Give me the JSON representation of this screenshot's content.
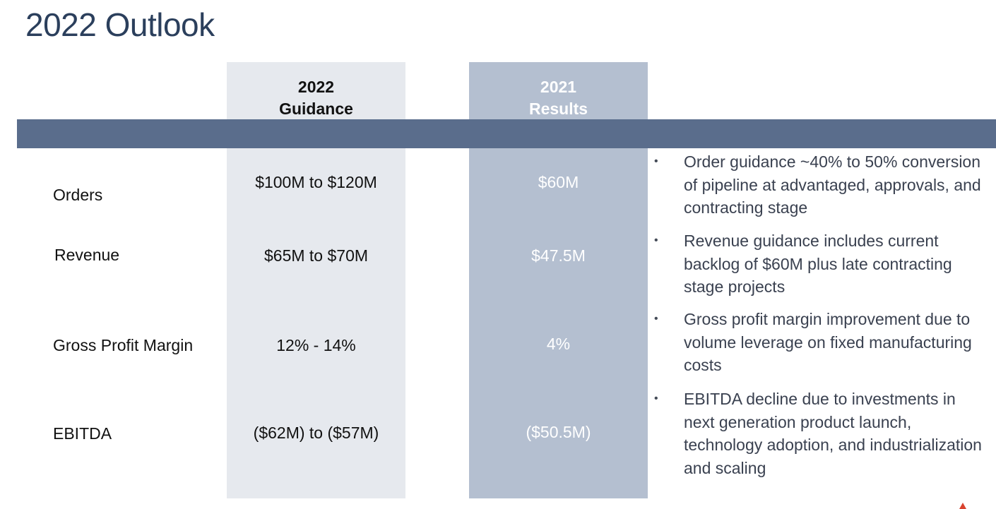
{
  "title": "2022 Outlook",
  "columns": {
    "guidance": {
      "line1": "2022",
      "line2": "Guidance"
    },
    "results": {
      "line1": "2021",
      "line2": "Results"
    }
  },
  "rows": [
    {
      "label": "Orders",
      "guidance": "$100M to $120M",
      "results": "$60M"
    },
    {
      "label": "Revenue",
      "guidance": "$65M to $70M",
      "results": "$47.5M"
    },
    {
      "label": "Gross Profit Margin",
      "guidance": "12% - 14%",
      "results": "4%"
    },
    {
      "label": "EBITDA",
      "guidance": "($62M) to ($57M)",
      "results": "($50.5M)"
    }
  ],
  "bullets": [
    "Order guidance ~40% to 50% conversion of pipeline at advantaged, approvals, and contracting stage",
    "Revenue guidance includes current backlog of $60M plus late contracting stage projects",
    "Gross profit margin improvement due to volume leverage on fixed manufacturing costs",
    "EBITDA decline due to investments in next generation product launch, technology adoption, and industrialization and scaling"
  ],
  "bullet_symbol": "•",
  "colors": {
    "title": "#2b3f5c",
    "band": "#5a6d8c",
    "guidance_column": "#e6e9ee",
    "results_column": "#b4bfd0",
    "accent": "#d9432f"
  }
}
